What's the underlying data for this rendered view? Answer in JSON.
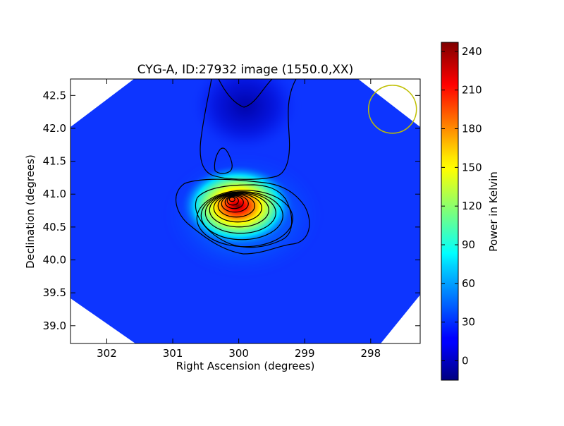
{
  "chart_data": {
    "type": "heatmap",
    "title": "CYG-A, ID:27932 image (1550.0,XX)",
    "xlabel": "Right Ascension (degrees)",
    "ylabel": "Declination (degrees)",
    "xlim": [
      302.55,
      297.25
    ],
    "ylim": [
      38.73,
      42.75
    ],
    "x_reversed": true,
    "x_ticks": [
      302,
      301,
      300,
      299,
      298
    ],
    "y_ticks": [
      39.0,
      39.5,
      40.0,
      40.5,
      41.0,
      41.5,
      42.0,
      42.5
    ],
    "x_tick_labels": [
      "302",
      "301",
      "300",
      "299",
      "298"
    ],
    "y_tick_labels": [
      "39.0",
      "39.5",
      "40.0",
      "40.5",
      "41.0",
      "41.5",
      "42.0",
      "42.5"
    ],
    "colormap": "jet",
    "colorbar": {
      "label": "Power in Kelvin",
      "range": [
        -15,
        247
      ],
      "ticks": [
        0,
        30,
        60,
        90,
        120,
        150,
        180,
        210,
        240
      ],
      "tick_labels": [
        "0",
        "30",
        "60",
        "90",
        "120",
        "150",
        "180",
        "210",
        "240"
      ]
    },
    "source": {
      "label": "CYG-A",
      "ra": 300.1,
      "dec": 40.93,
      "peak_kelvin": 247
    },
    "background_kelvin": 40,
    "beam_circle": {
      "ra": 297.67,
      "dec": 42.29,
      "color": "#bfbf00"
    },
    "contours": true,
    "grid": false
  }
}
